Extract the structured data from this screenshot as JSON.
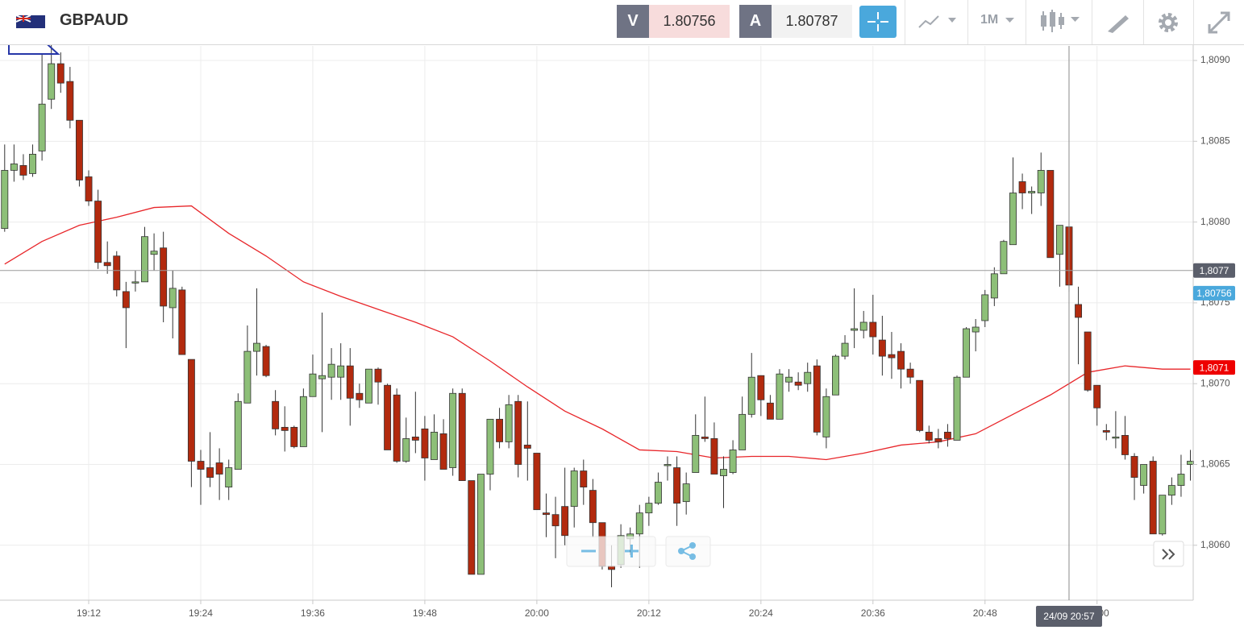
{
  "header": {
    "symbol": "GBPAUD",
    "bid_label": "V",
    "bid": 1.80756,
    "ask_label": "A",
    "ask": 1.80787,
    "timeframe": "1M"
  },
  "chart_data": {
    "type": "candlestick",
    "x": [
      1143,
      1144,
      1145,
      1146,
      1147,
      1148,
      1149,
      1150,
      1151,
      1152,
      1153,
      1154,
      1155,
      1156,
      1157,
      1158,
      1159,
      1160,
      1161,
      1162,
      1163,
      1164,
      1165,
      1166,
      1167,
      1168,
      1169,
      1170,
      1171,
      1172,
      1173,
      1174,
      1175,
      1176,
      1177,
      1178,
      1179,
      1180,
      1181,
      1182,
      1183,
      1184,
      1185,
      1186,
      1187,
      1188,
      1189,
      1190,
      1191,
      1192,
      1193,
      1194,
      1195,
      1196,
      1197,
      1198,
      1199,
      1200,
      1201,
      1202,
      1203,
      1204,
      1205,
      1206,
      1207,
      1208,
      1209,
      1210,
      1211,
      1212,
      1213,
      1214,
      1215,
      1216,
      1217,
      1218,
      1219,
      1220,
      1221,
      1222,
      1223,
      1224,
      1225,
      1226,
      1227,
      1228,
      1229,
      1230,
      1231,
      1232,
      1233,
      1234,
      1235,
      1236,
      1237,
      1238,
      1239,
      1240,
      1241,
      1242,
      1243,
      1244,
      1245,
      1246,
      1247,
      1248,
      1249,
      1250,
      1251,
      1252,
      1253,
      1254,
      1255,
      1256,
      1257,
      1258,
      1259,
      1260,
      1261,
      1262,
      1263,
      1264,
      1265,
      1266,
      1267,
      1268,
      1269,
      1270
    ],
    "open": [
      1.80796,
      1.80832,
      1.80835,
      1.8083,
      1.80844,
      1.80876,
      1.80898,
      1.80887,
      1.80863,
      1.80828,
      1.80813,
      1.80775,
      1.80779,
      1.80757,
      1.80763,
      1.80763,
      1.8078,
      1.80784,
      1.80747,
      1.80758,
      1.80715,
      1.80652,
      1.80648,
      1.80651,
      1.80636,
      1.80647,
      1.80688,
      1.8072,
      1.80723,
      1.80689,
      1.80673,
      1.80673,
      1.80661,
      1.80692,
      1.80703,
      1.80704,
      1.80704,
      1.80711,
      1.80694,
      1.80688,
      1.80709,
      1.80699,
      1.80693,
      1.80652,
      1.80667,
      1.80672,
      1.80653,
      1.80669,
      1.80648,
      1.80694,
      1.8064,
      1.80582,
      1.80644,
      1.80678,
      1.80664,
      1.80689,
      1.80662,
      1.80657,
      1.8062,
      1.80619,
      1.80624,
      1.80624,
      1.80646,
      1.80634,
      1.80614,
      1.80587,
      1.80588,
      1.80604,
      1.80607,
      1.8062,
      1.80626,
      1.8065,
      1.80648,
      1.80627,
      1.80645,
      1.80667,
      1.80666,
      1.80643,
      1.80645,
      1.80659,
      1.80681,
      1.80705,
      1.80688,
      1.80678,
      1.80701,
      1.80701,
      1.807,
      1.80711,
      1.80667,
      1.80693,
      1.80717,
      1.80733,
      1.80733,
      1.80738,
      1.80727,
      1.80718,
      1.8072,
      1.80709,
      1.80702,
      1.8067,
      1.80666,
      1.8067,
      1.80665,
      1.80704,
      1.80732,
      1.80739,
      1.80753,
      1.80768,
      1.80786,
      1.80825,
      1.80818,
      1.80818,
      1.80832,
      1.8078,
      1.80797,
      1.80749,
      1.80732,
      1.80699,
      1.80671,
      1.80667,
      1.80668,
      1.80655,
      1.80637,
      1.80652,
      1.80607,
      1.80631,
      1.80637,
      1.8065
    ],
    "high": [
      1.80848,
      1.80848,
      1.80842,
      1.80848,
      1.80904,
      1.8091,
      1.80905,
      1.80896,
      1.80863,
      1.80832,
      1.8082,
      1.80788,
      1.80782,
      1.80763,
      1.8077,
      1.80797,
      1.80793,
      1.80794,
      1.8077,
      1.8076,
      1.80715,
      1.80659,
      1.8067,
      1.8066,
      1.80653,
      1.80694,
      1.80736,
      1.80759,
      1.80724,
      1.80696,
      1.80686,
      1.80674,
      1.80697,
      1.80718,
      1.80744,
      1.80722,
      1.80725,
      1.80722,
      1.807,
      1.80709,
      1.8071,
      1.807,
      1.80697,
      1.80679,
      1.80695,
      1.8068,
      1.80681,
      1.80678,
      1.80697,
      1.80697,
      1.8064,
      1.80644,
      1.80678,
      1.80685,
      1.80693,
      1.80693,
      1.80689,
      1.80657,
      1.80632,
      1.8063,
      1.80648,
      1.80648,
      1.80653,
      1.80641,
      1.80614,
      1.806,
      1.80613,
      1.80611,
      1.80625,
      1.8063,
      1.80645,
      1.80655,
      1.80655,
      1.80645,
      1.80681,
      1.80692,
      1.80676,
      1.80655,
      1.80665,
      1.80692,
      1.80719,
      1.80705,
      1.80693,
      1.80709,
      1.80709,
      1.80707,
      1.80713,
      1.80715,
      1.80697,
      1.80718,
      1.8073,
      1.80759,
      1.80745,
      1.80755,
      1.80742,
      1.80732,
      1.80725,
      1.80713,
      1.80702,
      1.80674,
      1.80672,
      1.80675,
      1.80705,
      1.80735,
      1.8074,
      1.80758,
      1.80772,
      1.80789,
      1.8084,
      1.8083,
      1.80822,
      1.80843,
      1.80832,
      1.80798,
      1.80797,
      1.8076,
      1.80732,
      1.80699,
      1.80675,
      1.80683,
      1.8068,
      1.80657,
      1.8065,
      1.80655,
      1.80631,
      1.80642,
      1.80656,
      1.80659
    ],
    "low": [
      1.80794,
      1.80825,
      1.80826,
      1.80828,
      1.80838,
      1.8087,
      1.8088,
      1.80858,
      1.80822,
      1.8081,
      1.80771,
      1.80768,
      1.80754,
      1.80722,
      1.80757,
      1.80763,
      1.8077,
      1.80738,
      1.80728,
      1.80718,
      1.80636,
      1.80625,
      1.80636,
      1.80628,
      1.80628,
      1.80647,
      1.80688,
      1.80705,
      1.80704,
      1.80668,
      1.80658,
      1.8066,
      1.80661,
      1.80692,
      1.8067,
      1.8069,
      1.8069,
      1.80674,
      1.80685,
      1.80688,
      1.80687,
      1.80659,
      1.80651,
      1.80651,
      1.80657,
      1.8064,
      1.80653,
      1.80648,
      1.80643,
      1.8064,
      1.80582,
      1.80582,
      1.80634,
      1.8066,
      1.8066,
      1.80642,
      1.8064,
      1.80622,
      1.80605,
      1.80592,
      1.806,
      1.80611,
      1.80625,
      1.80605,
      1.80585,
      1.80574,
      1.80586,
      1.80594,
      1.80586,
      1.80612,
      1.80625,
      1.8064,
      1.80612,
      1.80619,
      1.80645,
      1.80664,
      1.80644,
      1.80623,
      1.80644,
      1.80659,
      1.80679,
      1.8068,
      1.80678,
      1.80678,
      1.80695,
      1.80696,
      1.80695,
      1.80668,
      1.8066,
      1.80693,
      1.80715,
      1.80722,
      1.80728,
      1.80718,
      1.80705,
      1.80703,
      1.80697,
      1.807,
      1.8067,
      1.80663,
      1.8066,
      1.80661,
      1.80665,
      1.80704,
      1.8072,
      1.80735,
      1.80748,
      1.80768,
      1.80786,
      1.80808,
      1.80805,
      1.8081,
      1.80778,
      1.8076,
      1.80757,
      1.80712,
      1.80695,
      1.80674,
      1.80665,
      1.8066,
      1.80653,
      1.80628,
      1.80632,
      1.80607,
      1.80606,
      1.80625,
      1.8063,
      1.8064
    ],
    "close": [
      1.80832,
      1.80836,
      1.80829,
      1.80842,
      1.80873,
      1.80898,
      1.80886,
      1.80863,
      1.80826,
      1.80813,
      1.80775,
      1.80773,
      1.80758,
      1.80747,
      1.80763,
      1.80791,
      1.80782,
      1.80748,
      1.80759,
      1.80718,
      1.80652,
      1.80647,
      1.80642,
      1.80644,
      1.80648,
      1.80689,
      1.8072,
      1.80725,
      1.80705,
      1.80672,
      1.80671,
      1.80661,
      1.80692,
      1.80706,
      1.80705,
      1.80712,
      1.80711,
      1.80691,
      1.8069,
      1.80709,
      1.80701,
      1.80659,
      1.80652,
      1.80666,
      1.80665,
      1.80654,
      1.8067,
      1.80647,
      1.80694,
      1.8064,
      1.80582,
      1.80644,
      1.80678,
      1.80664,
      1.80687,
      1.8065,
      1.8066,
      1.80622,
      1.80619,
      1.80612,
      1.80606,
      1.80646,
      1.80636,
      1.80614,
      1.80587,
      1.80585,
      1.80606,
      1.80607,
      1.8062,
      1.80626,
      1.80639,
      1.8065,
      1.80626,
      1.80638,
      1.80668,
      1.80666,
      1.80644,
      1.80647,
      1.80659,
      1.80681,
      1.80704,
      1.8069,
      1.80678,
      1.80706,
      1.80704,
      1.80699,
      1.80707,
      1.8067,
      1.80692,
      1.80717,
      1.80725,
      1.80734,
      1.80738,
      1.80729,
      1.80717,
      1.80716,
      1.80709,
      1.80704,
      1.80671,
      1.80665,
      1.80664,
      1.80666,
      1.80704,
      1.80734,
      1.80735,
      1.80755,
      1.80768,
      1.80788,
      1.80818,
      1.80818,
      1.80819,
      1.80832,
      1.80778,
      1.80798,
      1.80761,
      1.80741,
      1.80696,
      1.80685,
      1.8067,
      1.80667,
      1.80656,
      1.80642,
      1.8065,
      1.80607,
      1.80631,
      1.80637,
      1.80644,
      1.80652
    ],
    "up_color": "#8dbf78",
    "down_color": "#b22a0e",
    "overlay": {
      "type": "line",
      "color": "#e8262a",
      "x": [
        1143,
        1147,
        1151,
        1155,
        1159,
        1163,
        1167,
        1171,
        1175,
        1179,
        1183,
        1187,
        1191,
        1195,
        1199,
        1203,
        1207,
        1211,
        1215,
        1219,
        1223,
        1227,
        1231,
        1235,
        1239,
        1243,
        1247,
        1251,
        1255,
        1259,
        1263,
        1267,
        1270
      ],
      "values": [
        1.80774,
        1.80788,
        1.80798,
        1.80803,
        1.80809,
        1.8081,
        1.80793,
        1.80779,
        1.80763,
        1.80754,
        1.80746,
        1.80738,
        1.80729,
        1.80714,
        1.80698,
        1.80683,
        1.80672,
        1.80659,
        1.80658,
        1.80654,
        1.80655,
        1.80655,
        1.80653,
        1.80657,
        1.80662,
        1.80664,
        1.80669,
        1.80681,
        1.80693,
        1.80707,
        1.80711,
        1.80709,
        1.80709
      ]
    },
    "xlim": [
      1142.5,
      1270.3
    ],
    "ylim": [
      1.80566,
      1.80909
    ],
    "xticks": [
      {
        "value": 1152,
        "label": "19:12"
      },
      {
        "value": 1164,
        "label": "19:24"
      },
      {
        "value": 1176,
        "label": "19:36"
      },
      {
        "value": 1188,
        "label": "19:48"
      },
      {
        "value": 1200,
        "label": "20:00"
      },
      {
        "value": 1212,
        "label": "20:12"
      },
      {
        "value": 1224,
        "label": "20:24"
      },
      {
        "value": 1236,
        "label": "20:36"
      },
      {
        "value": 1248,
        "label": "20:48"
      },
      {
        "value": 1260,
        "label": "21:00"
      }
    ],
    "yticks": [
      {
        "value": 1.806,
        "label": "1,8060"
      },
      {
        "value": 1.8065,
        "label": "1,8065"
      },
      {
        "value": 1.807,
        "label": "1,8070"
      },
      {
        "value": 1.8075,
        "label": "1,8075"
      },
      {
        "value": 1.808,
        "label": "1,8080"
      },
      {
        "value": 1.8085,
        "label": "1,8085"
      },
      {
        "value": 1.809,
        "label": "1,8090"
      }
    ],
    "grid": true,
    "price_markers": [
      {
        "value": 1.8077,
        "label": "1,8077",
        "color": "#5b5f6b",
        "line": true
      },
      {
        "value": 1.80756,
        "label": "1,80756",
        "color": "#4aa8dc",
        "line": false
      },
      {
        "value": 1.8071,
        "label": "1,8071",
        "color": "#ee0000",
        "line": false
      }
    ],
    "crosshair": {
      "value": 1257,
      "label": "24/09 20:57"
    }
  }
}
